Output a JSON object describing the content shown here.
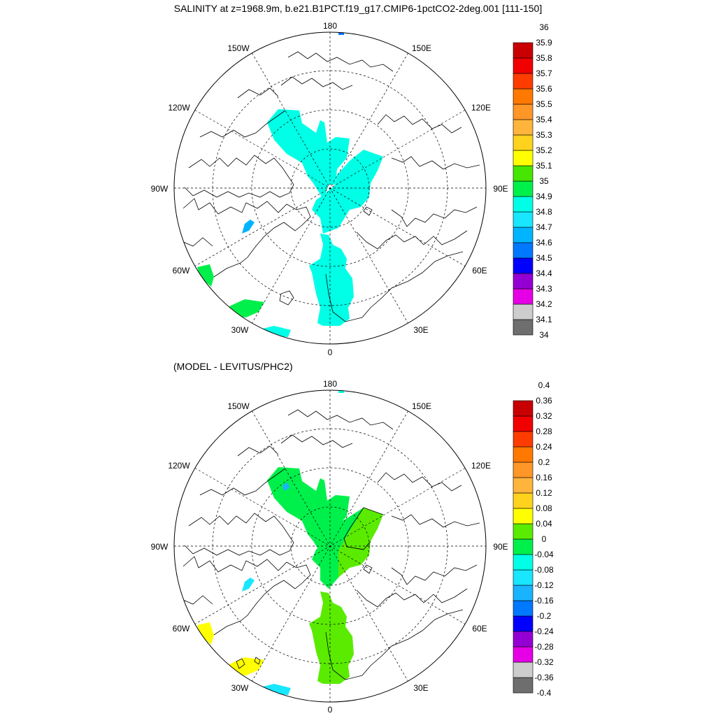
{
  "title": "SALINITY at z=1968.9m, b.e21.B1PCT.f19_g17.CMIP6-1pctCO2-2deg.001 [111-150]",
  "subtitle": "(MODEL - LEVITUS/PHC2)",
  "longitude_labels": [
    "180",
    "150E",
    "120E",
    "90E",
    "60E",
    "30E",
    "0",
    "30W",
    "60W",
    "90W",
    "120W",
    "150W"
  ],
  "colors": {
    "top": [
      "#6e6e6e",
      "#cdcdcd",
      "#e600e6",
      "#9400d3",
      "#0000ff",
      "#0078ff",
      "#00b4ff",
      "#19e6ff",
      "#00ffe6",
      "#00f04b",
      "#46e600",
      "#ffff00",
      "#ffd21e",
      "#ffb43c",
      "#ff9628",
      "#ff7800",
      "#ff3c00",
      "#f00000",
      "#c80000"
    ],
    "bottom": [
      "#6e6e6e",
      "#cdcdcd",
      "#e600e6",
      "#9400d3",
      "#0000ff",
      "#0078ff",
      "#19b4ff",
      "#19e6ff",
      "#00ffe6",
      "#00f04b",
      "#5aeb00",
      "#ffff00",
      "#ffd21e",
      "#ffb43c",
      "#ff9628",
      "#ff7800",
      "#ff3c00",
      "#f00000",
      "#c80000"
    ]
  },
  "colorbar_top": [
    "34",
    "34.1",
    "34.2",
    "34.3",
    "34.4",
    "34.5",
    "34.6",
    "34.7",
    "34.8",
    "34.9",
    "35",
    "35.1",
    "35.2",
    "35.3",
    "35.4",
    "35.5",
    "35.6",
    "35.7",
    "35.8",
    "35.9",
    "36"
  ],
  "colorbar_bottom": [
    "-0.4",
    "-0.36",
    "-0.32",
    "-0.28",
    "-0.24",
    "-0.2",
    "-0.16",
    "-0.12",
    "-0.08",
    "-0.04",
    "0",
    "0.04",
    "0.08",
    "0.12",
    "0.16",
    "0.2",
    "0.24",
    "0.28",
    "0.32",
    "0.36",
    "0.4"
  ]
}
